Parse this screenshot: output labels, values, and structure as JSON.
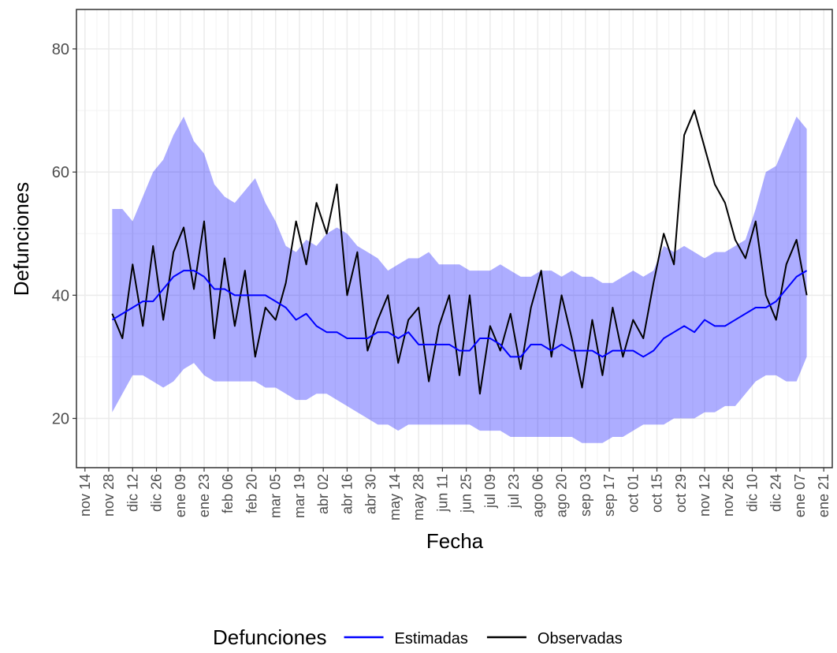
{
  "chart_data": {
    "type": "line",
    "x_label": "Fecha",
    "y_label": "Defunciones",
    "legend_title": "Defunciones",
    "legend": "bottom",
    "grid": true,
    "x": [
      16,
      22,
      28,
      34,
      40,
      46,
      52,
      58,
      64,
      70,
      76,
      82,
      88,
      94,
      100,
      106,
      112,
      118,
      124,
      130,
      136,
      142,
      148,
      154,
      160,
      166,
      172,
      178,
      184,
      190,
      196,
      202,
      208,
      214,
      220,
      226,
      232,
      238,
      244,
      250,
      256,
      262,
      268,
      274,
      280,
      286,
      292,
      298,
      304,
      310,
      316,
      322,
      328,
      334,
      340,
      346,
      352,
      358,
      364,
      370,
      376,
      382,
      388,
      394,
      400,
      406,
      412,
      418,
      424
    ],
    "xlim": [
      -5,
      439
    ],
    "xticks": [
      {
        "value": 0,
        "label": "nov 14"
      },
      {
        "value": 14,
        "label": "nov 28"
      },
      {
        "value": 28,
        "label": "dic 12"
      },
      {
        "value": 42,
        "label": "dic 26"
      },
      {
        "value": 56,
        "label": "ene 09"
      },
      {
        "value": 70,
        "label": "ene 23"
      },
      {
        "value": 84,
        "label": "feb 06"
      },
      {
        "value": 98,
        "label": "feb 20"
      },
      {
        "value": 112,
        "label": "mar 05"
      },
      {
        "value": 126,
        "label": "mar 19"
      },
      {
        "value": 140,
        "label": "abr 02"
      },
      {
        "value": 154,
        "label": "abr 16"
      },
      {
        "value": 168,
        "label": "abr 30"
      },
      {
        "value": 182,
        "label": "may 14"
      },
      {
        "value": 196,
        "label": "may 28"
      },
      {
        "value": 210,
        "label": "jun 11"
      },
      {
        "value": 224,
        "label": "jun 25"
      },
      {
        "value": 238,
        "label": "jul 09"
      },
      {
        "value": 252,
        "label": "jul 23"
      },
      {
        "value": 266,
        "label": "ago 06"
      },
      {
        "value": 280,
        "label": "ago 20"
      },
      {
        "value": 294,
        "label": "sep 03"
      },
      {
        "value": 308,
        "label": "sep 17"
      },
      {
        "value": 322,
        "label": "oct 01"
      },
      {
        "value": 336,
        "label": "oct 15"
      },
      {
        "value": 350,
        "label": "oct 29"
      },
      {
        "value": 364,
        "label": "nov 12"
      },
      {
        "value": 378,
        "label": "nov 26"
      },
      {
        "value": 392,
        "label": "dic 10"
      },
      {
        "value": 406,
        "label": "dic 24"
      },
      {
        "value": 420,
        "label": "ene 07"
      },
      {
        "value": 434,
        "label": "ene 21"
      }
    ],
    "ylim": [
      12,
      86.4
    ],
    "yticks": [
      20,
      40,
      60,
      80
    ],
    "ribbon": {
      "color": "#0000ff",
      "upper": [
        54,
        54,
        52,
        56,
        60,
        62,
        66,
        69,
        65,
        63,
        58,
        56,
        55,
        57,
        59,
        55,
        52,
        48,
        47,
        49,
        48,
        50,
        51,
        50,
        48,
        47,
        46,
        44,
        45,
        46,
        46,
        47,
        45,
        45,
        45,
        44,
        44,
        44,
        45,
        44,
        43,
        43,
        44,
        44,
        43,
        44,
        43,
        43,
        42,
        42,
        43,
        44,
        43,
        44,
        48,
        47,
        48,
        47,
        46,
        47,
        47,
        48,
        49,
        54,
        60,
        61,
        65,
        69,
        67
      ],
      "lower": [
        21,
        24,
        27,
        27,
        26,
        25,
        26,
        28,
        29,
        27,
        26,
        26,
        26,
        26,
        26,
        25,
        25,
        24,
        23,
        23,
        24,
        24,
        23,
        22,
        21,
        20,
        19,
        19,
        18,
        19,
        19,
        19,
        19,
        19,
        19,
        19,
        18,
        18,
        18,
        17,
        17,
        17,
        17,
        17,
        17,
        17,
        16,
        16,
        16,
        17,
        17,
        18,
        19,
        19,
        19,
        20,
        20,
        20,
        21,
        21,
        22,
        22,
        24,
        26,
        27,
        27,
        26,
        26,
        30
      ]
    },
    "series": [
      {
        "name": "Estimadas",
        "color": "#0000ff",
        "values": [
          36,
          37,
          38,
          39,
          39,
          41,
          43,
          44,
          44,
          43,
          41,
          41,
          40,
          40,
          40,
          40,
          39,
          38,
          36,
          37,
          35,
          34,
          34,
          33,
          33,
          33,
          34,
          34,
          33,
          34,
          32,
          32,
          32,
          32,
          31,
          31,
          33,
          33,
          32,
          30,
          30,
          32,
          32,
          31,
          32,
          31,
          31,
          31,
          30,
          31,
          31,
          31,
          30,
          31,
          33,
          34,
          35,
          34,
          36,
          35,
          35,
          36,
          37,
          38,
          38,
          39,
          41,
          43,
          44
        ]
      },
      {
        "name": "Observadas",
        "color": "#000000",
        "values": [
          37,
          33,
          45,
          35,
          48,
          36,
          47,
          51,
          41,
          52,
          33,
          46,
          35,
          44,
          30,
          38,
          36,
          42,
          52,
          45,
          55,
          50,
          58,
          40,
          47,
          31,
          36,
          40,
          29,
          36,
          38,
          26,
          35,
          40,
          27,
          40,
          24,
          35,
          31,
          37,
          28,
          38,
          44,
          30,
          40,
          33,
          25,
          36,
          27,
          38,
          30,
          36,
          33,
          42,
          50,
          45,
          66,
          70,
          64,
          58,
          55,
          49,
          46,
          52,
          40,
          36,
          45,
          49,
          40
        ]
      }
    ]
  }
}
